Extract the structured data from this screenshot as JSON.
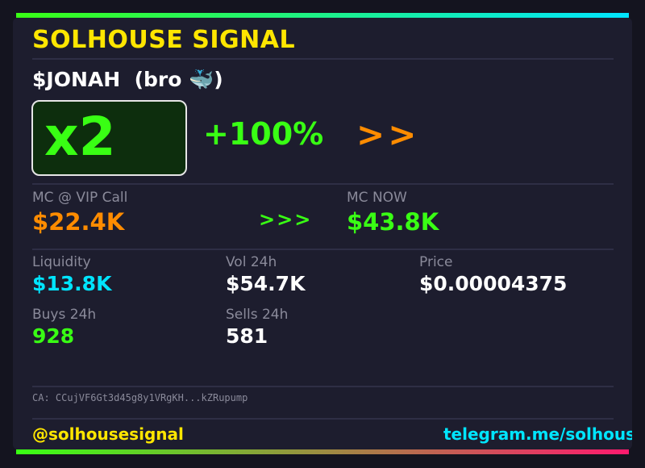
{
  "header": {
    "brand": "SOLHOUSE SIGNAL",
    "ticker": "$JONAH",
    "token_name": "(bro 🐳)"
  },
  "gain": {
    "multiplier": "x2",
    "percent": "+100%",
    "arrows": ">>"
  },
  "market_cap": {
    "call_label": "MC @ VIP Call",
    "call_value": "$22.4K",
    "arrows": ">>>",
    "now_label": "MC NOW",
    "now_value": "$43.8K"
  },
  "stats": {
    "liquidity_label": "Liquidity",
    "liquidity_value": "$13.8K",
    "vol_label": "Vol 24h",
    "vol_value": "$54.7K",
    "price_label": "Price",
    "price_value": "$0.00004375",
    "buys_label": "Buys 24h",
    "buys_value": "928",
    "sells_label": "Sells 24h",
    "sells_value": "581"
  },
  "contract": {
    "text": "CA: CCujVF6Gt3d45g8y1VRgKH...kZRupump"
  },
  "footer": {
    "handle": "@solhousesignal",
    "link": "telegram.me/solhouse"
  },
  "colors": {
    "accent_yellow": "#ffe600",
    "accent_green": "#39ff14",
    "accent_orange": "#ff8c00",
    "accent_cyan": "#00e5ff",
    "card_bg": "#1d1d2e",
    "page_bg": "#14141f"
  }
}
